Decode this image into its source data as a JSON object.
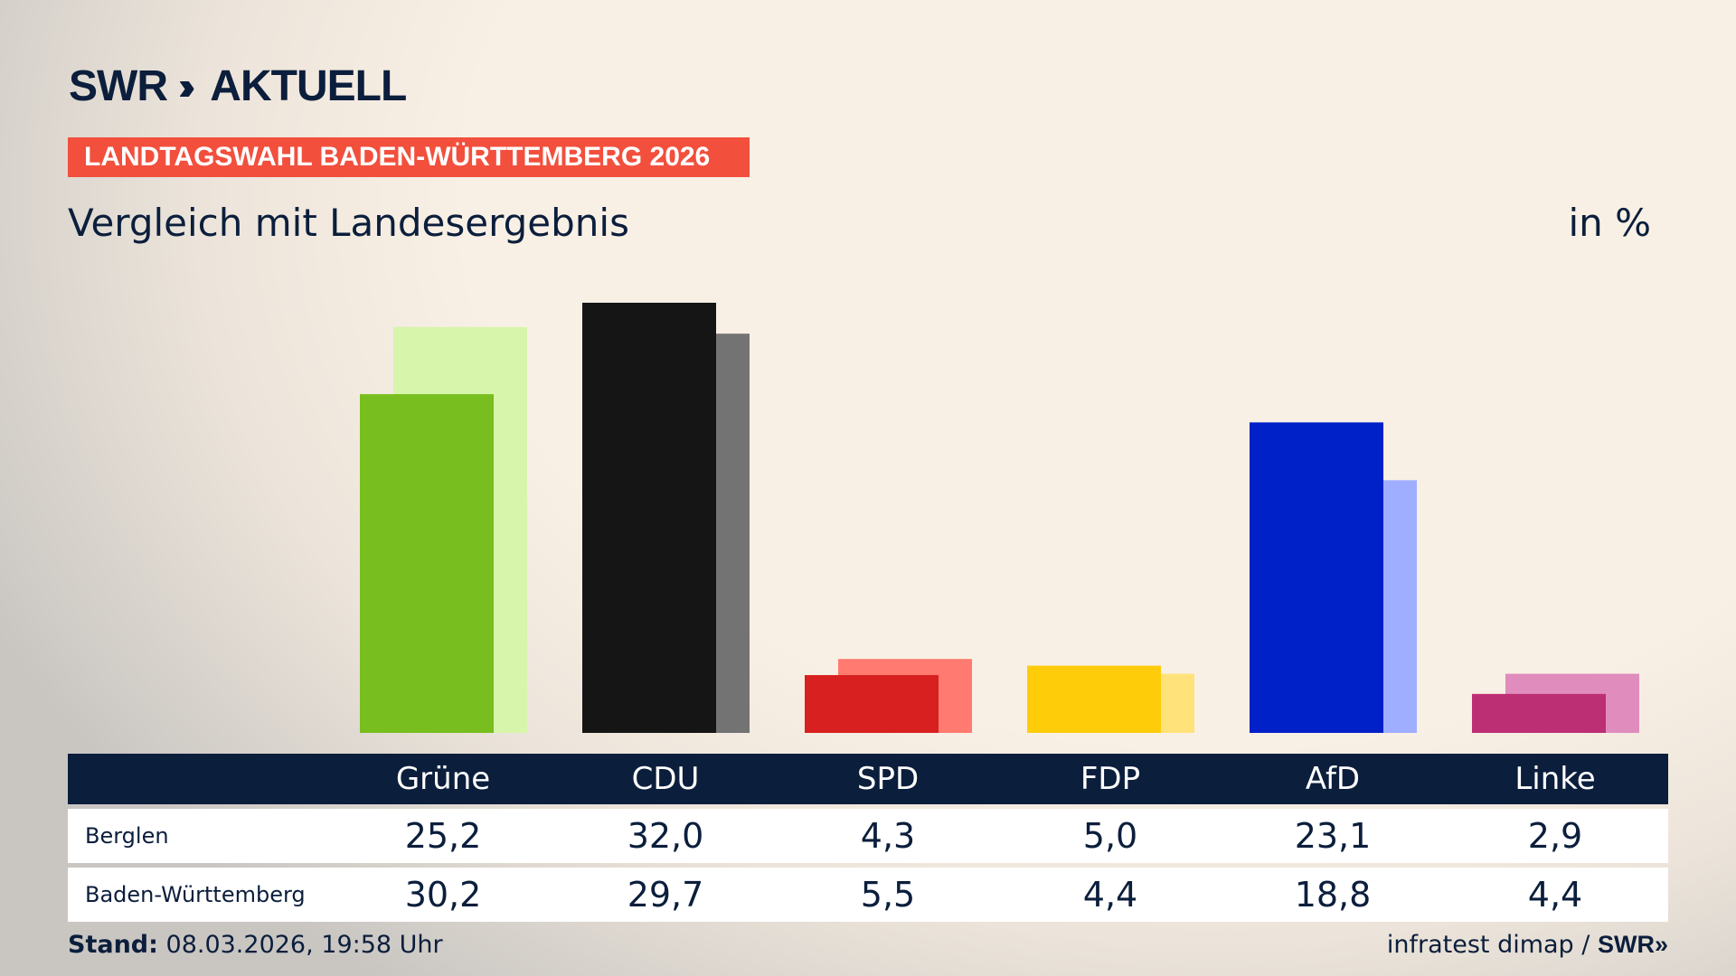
{
  "header": {
    "logo": "SWR» AKTUELL",
    "logo_brand": "SWR",
    "logo_product": "AKTUELL",
    "banner": "LANDTAGSWAHL BADEN-WÜRTTEMBERG 2026",
    "subtitle": "Vergleich mit Landesergebnis",
    "unit": "in %"
  },
  "chart_data": {
    "type": "bar",
    "categories": [
      "Grüne",
      "CDU",
      "SPD",
      "FDP",
      "AfD",
      "Linke"
    ],
    "series": [
      {
        "name": "Berglen",
        "values": [
          25.2,
          32.0,
          4.3,
          5.0,
          23.1,
          2.9
        ]
      },
      {
        "name": "Baden-Württemberg",
        "values": [
          30.2,
          29.7,
          5.5,
          4.4,
          18.8,
          4.4
        ]
      }
    ],
    "colors": {
      "primary": [
        "#78be1e",
        "#151515",
        "#d7201f",
        "#ffcc0a",
        "#0020c8",
        "#bd2f75"
      ],
      "secondary": [
        "#d8f5ac",
        "#737373",
        "#ff7a70",
        "#ffe27a",
        "#a0aeff",
        "#e08cbd"
      ]
    },
    "ylim": [
      0,
      32
    ],
    "grid": false
  },
  "table": {
    "headers": [
      "Grüne",
      "CDU",
      "SPD",
      "FDP",
      "AfD",
      "Linke"
    ],
    "rows": [
      {
        "label": "Berglen",
        "values": [
          "25,2",
          "32,0",
          "4,3",
          "5,0",
          "23,1",
          "2,9"
        ]
      },
      {
        "label": "Baden-Württemberg",
        "values": [
          "30,2",
          "29,7",
          "5,5",
          "4,4",
          "18,8",
          "4,4"
        ]
      }
    ]
  },
  "footer": {
    "stand_label": "Stand:",
    "stand_value": "08.03.2026, 19:58 Uhr",
    "source": "infratest dimap /",
    "source_logo": "SWR»"
  }
}
